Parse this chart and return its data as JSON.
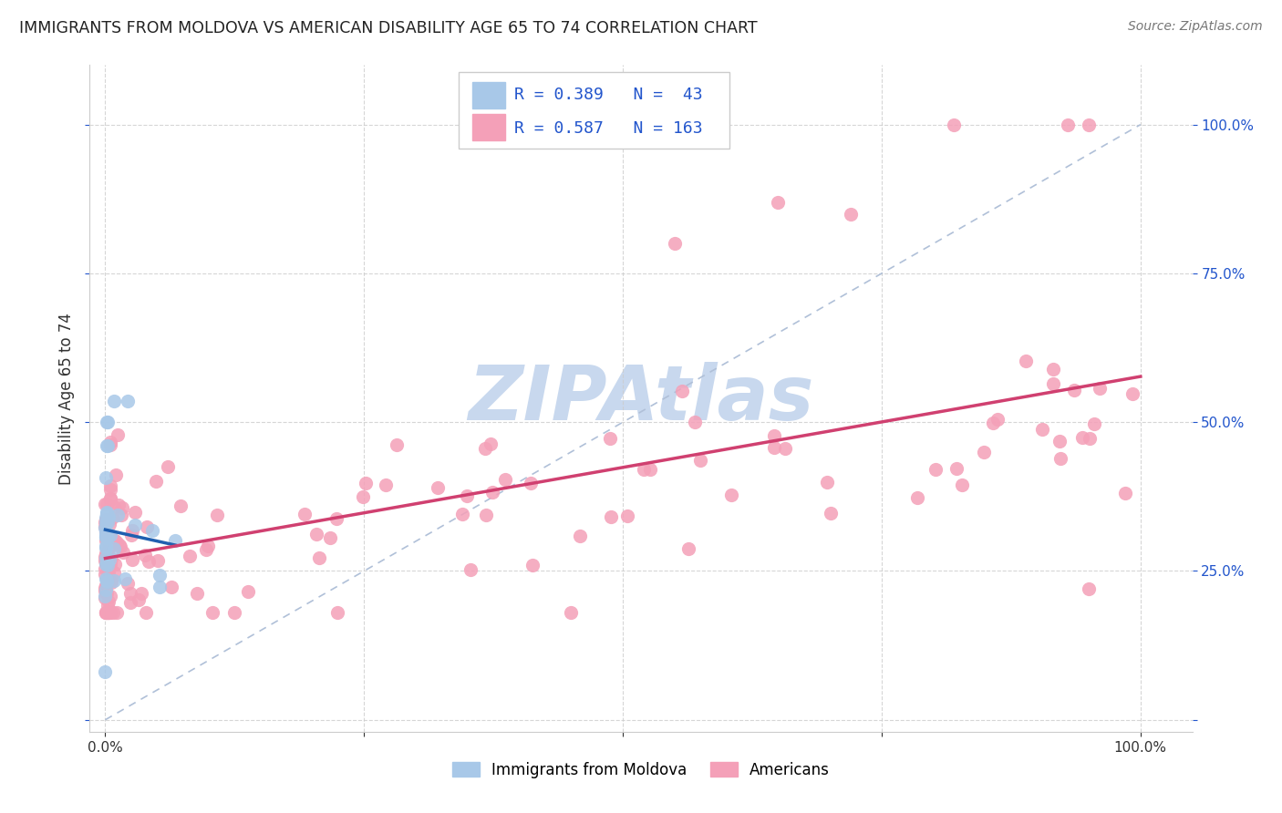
{
  "title": "IMMIGRANTS FROM MOLDOVA VS AMERICAN DISABILITY AGE 65 TO 74 CORRELATION CHART",
  "source": "Source: ZipAtlas.com",
  "ylabel": "Disability Age 65 to 74",
  "legend_label1": "Immigrants from Moldova",
  "legend_label2": "Americans",
  "r1": 0.389,
  "n1": 43,
  "r2": 0.587,
  "n2": 163,
  "blue_scatter_color": "#a8c8e8",
  "pink_scatter_color": "#f4a0b8",
  "blue_line_color": "#2060b0",
  "pink_line_color": "#d04070",
  "legend_text_color": "#2255cc",
  "background_color": "#ffffff",
  "grid_color": "#cccccc",
  "watermark_color": "#c8d8ee",
  "diag_color": "#b0c0d8"
}
